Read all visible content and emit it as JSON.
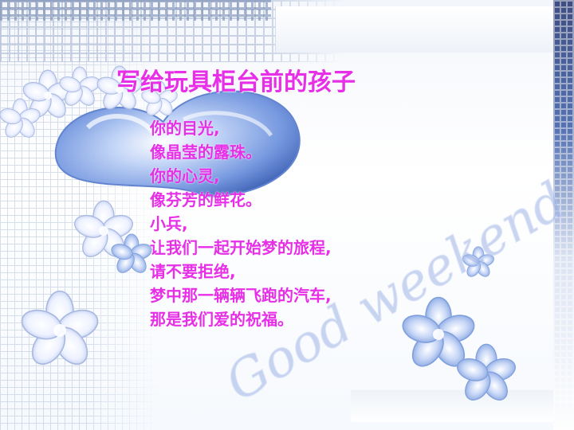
{
  "slide": {
    "title": "写给玩具柜台前的孩子",
    "poem_lines": [
      "你的目光,",
      "像晶莹的露珠。",
      "你的心灵,",
      "像芬芳的鲜花。",
      "小兵,",
      "让我们一起开始梦的旅程,",
      "请不要拒绝,",
      "梦中那一辆辆飞跑的汽车,",
      "那是我们爱的祝福。"
    ],
    "decoration_script_text": "Good weekend",
    "colors": {
      "text": "#e62fe6",
      "accent_blue": "#3a5aa4",
      "heart_blue": "#7fa2e8",
      "flower_white": "#f4f7ff"
    },
    "icons": [
      "heart-icon",
      "flower-icon"
    ]
  }
}
